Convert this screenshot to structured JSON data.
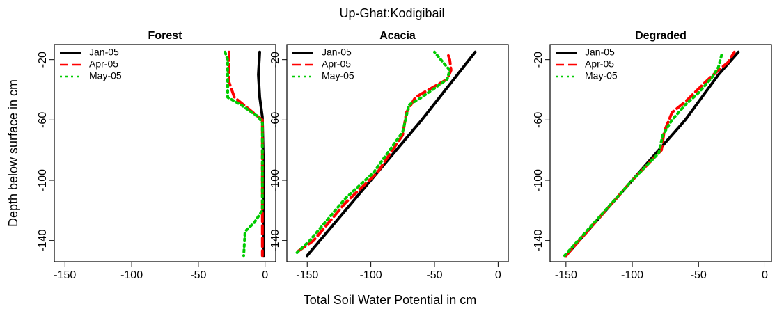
{
  "title": "Up-Ghat:Kodigibail",
  "x_label": "Total Soil Water Potential in cm",
  "y_label": "Depth below surface in cm",
  "chart_data": [
    {
      "type": "line",
      "title": "Forest",
      "xlim": [
        -158,
        8
      ],
      "ylim": [
        -154,
        -10
      ],
      "xticks": [
        -150,
        -100,
        -50,
        0
      ],
      "yticks": [
        -20,
        -60,
        -100,
        -140
      ],
      "legend": "upper left",
      "series": [
        {
          "name": "Jan-05",
          "color": "#000000",
          "style": "solid",
          "x": [
            -4,
            -5,
            -4,
            -2,
            -1,
            -1
          ],
          "values": [
            -15,
            -30,
            -45,
            -58,
            -100,
            -150
          ]
        },
        {
          "name": "Apr-05",
          "color": "#ff0000",
          "style": "dashed",
          "x": [
            -27,
            -27,
            -23,
            -5,
            -2,
            -2
          ],
          "values": [
            -15,
            -35,
            -45,
            -58,
            -60,
            -150
          ]
        },
        {
          "name": "May-05",
          "color": "#00cc00",
          "style": "dotted",
          "x": [
            -30,
            -28,
            -28,
            -18,
            -5,
            -2,
            -2,
            -8,
            -15,
            -16
          ],
          "values": [
            -15,
            -20,
            -45,
            -50,
            -58,
            -62,
            -120,
            -128,
            -134,
            -150
          ]
        }
      ]
    },
    {
      "type": "line",
      "title": "Acacia",
      "xlim": [
        -166,
        8
      ],
      "ylim": [
        -154,
        -10
      ],
      "xticks": [
        -150,
        -100,
        -50,
        0
      ],
      "yticks": [
        -20,
        -60,
        -100,
        -140
      ],
      "legend": "upper left",
      "series": [
        {
          "name": "Jan-05",
          "color": "#000000",
          "style": "solid",
          "x": [
            -150,
            -100,
            -60,
            -18
          ],
          "values": [
            -150,
            -100,
            -60,
            -15
          ]
        },
        {
          "name": "Apr-05",
          "color": "#ff0000",
          "style": "dashed",
          "x": [
            -157,
            -145,
            -120,
            -95,
            -75,
            -72,
            -65,
            -40,
            -37,
            -38,
            -40
          ],
          "values": [
            -147,
            -140,
            -115,
            -95,
            -70,
            -55,
            -45,
            -33,
            -27,
            -20,
            -15
          ]
        },
        {
          "name": "May-05",
          "color": "#00cc00",
          "style": "dotted",
          "x": [
            -158,
            -148,
            -120,
            -98,
            -75,
            -70,
            -60,
            -40,
            -38,
            -45,
            -50
          ],
          "values": [
            -148,
            -140,
            -112,
            -95,
            -68,
            -50,
            -45,
            -33,
            -27,
            -20,
            -15
          ]
        }
      ]
    },
    {
      "type": "line",
      "title": "Degraded",
      "xlim": [
        -162,
        5
      ],
      "ylim": [
        -154,
        -10
      ],
      "xticks": [
        -150,
        -100,
        -50,
        0
      ],
      "yticks": [
        -20,
        -60,
        -100,
        -140
      ],
      "legend": "upper left",
      "series": [
        {
          "name": "Jan-05",
          "color": "#000000",
          "style": "solid",
          "x": [
            -150,
            -100,
            -60,
            -35,
            -20
          ],
          "values": [
            -150,
            -100,
            -60,
            -30,
            -15
          ]
        },
        {
          "name": "Apr-05",
          "color": "#ff0000",
          "style": "dashed",
          "x": [
            -150,
            -100,
            -78,
            -76,
            -70,
            -60,
            -45,
            -35,
            -28,
            -23
          ],
          "values": [
            -150,
            -100,
            -80,
            -68,
            -55,
            -48,
            -35,
            -27,
            -22,
            -15
          ]
        },
        {
          "name": "May-05",
          "color": "#00cc00",
          "style": "dotted",
          "x": [
            -151,
            -100,
            -80,
            -77,
            -70,
            -60,
            -50,
            -40,
            -35,
            -32
          ],
          "values": [
            -150,
            -100,
            -82,
            -70,
            -60,
            -50,
            -42,
            -32,
            -25,
            -15
          ]
        }
      ]
    }
  ]
}
